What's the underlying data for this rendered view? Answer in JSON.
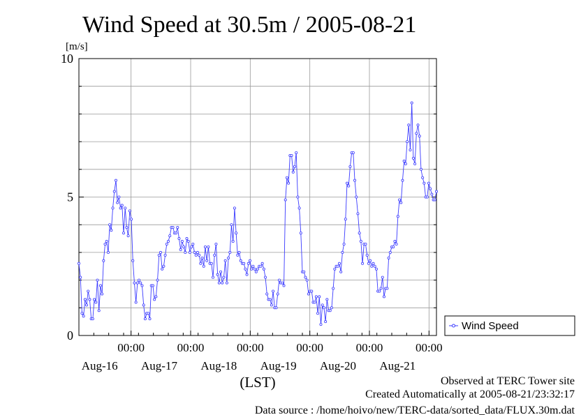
{
  "chart_data": {
    "type": "line",
    "title": "Wind Speed at 30.5m / 2005-08-21",
    "ylabel": "[m/s]",
    "xlabel": "(LST)",
    "ylim": [
      0,
      10
    ],
    "yticks": [
      "0",
      "5",
      "10"
    ],
    "xlim": [
      0,
      144
    ],
    "xticks": [
      {
        "x": 21,
        "time": "00:00",
        "date": "Aug-16"
      },
      {
        "x": 45,
        "time": "00:00",
        "date": "Aug-17"
      },
      {
        "x": 69,
        "time": "00:00",
        "date": "Aug-18"
      },
      {
        "x": 93,
        "time": "00:00",
        "date": "Aug-19"
      },
      {
        "x": 117,
        "time": "00:00",
        "date": "Aug-20"
      },
      {
        "x": 141,
        "time": "00:00",
        "date": "Aug-21"
      }
    ],
    "grid": true,
    "legend": "right",
    "series": [
      {
        "name": "Wind Speed",
        "color": "#3a3aff",
        "values": [
          2.6,
          2.1,
          0.8,
          0.7,
          1.3,
          1.1,
          1.6,
          1.3,
          0.6,
          0.6,
          1.3,
          1.2,
          2.0,
          0.9,
          1.8,
          1.5,
          2.7,
          3.3,
          3.4,
          3.0,
          4.0,
          3.8,
          4.6,
          5.2,
          5.6,
          4.8,
          5.0,
          4.6,
          4.7,
          3.7,
          4.6,
          3.9,
          3.6,
          4.5,
          4.2,
          2.7,
          1.9,
          1.2,
          1.9,
          2.0,
          1.9,
          1.8,
          1.1,
          0.6,
          0.8,
          0.8,
          0.6,
          1.8,
          1.8,
          1.3,
          1.4,
          2.0,
          2.9,
          3.0,
          2.4,
          2.5,
          2.9,
          3.3,
          3.4,
          3.6,
          3.9,
          3.9,
          3.7,
          3.7,
          3.9,
          3.5,
          3.1,
          3.4,
          3.2,
          3.0,
          3.5,
          3.4,
          3.0,
          3.2,
          3.3,
          3.0,
          2.9,
          3.0,
          2.9,
          2.6,
          2.8,
          2.5,
          3.2,
          2.7,
          3.2,
          2.6,
          2.6,
          2.1,
          2.9,
          3.3,
          2.2,
          1.9,
          2.3,
          1.9,
          2.1,
          2.7,
          1.9,
          2.8,
          3.0,
          4.0,
          3.4,
          4.6,
          3.7,
          2.9,
          3.0,
          2.7,
          2.6,
          2.6,
          2.4,
          2.2,
          2.6,
          2.7,
          2.4,
          2.5,
          2.4,
          2.3,
          2.4,
          2.5,
          2.5,
          2.6,
          2.4,
          2.1,
          1.5,
          1.3,
          1.3,
          1.1,
          1.6,
          1.0,
          1.0,
          1.5,
          2.0,
          1.9,
          1.9,
          1.8,
          4.9,
          5.7,
          5.5,
          6.5,
          6.5,
          5.9,
          6.1,
          6.6,
          5.0,
          4.6,
          3.7,
          2.3,
          2.3,
          2.1,
          2.0,
          1.5,
          1.6,
          1.6,
          1.2,
          1.2,
          1.4,
          0.8,
          1.4,
          0.4,
          1.1,
          1.0,
          0.5,
          1.3,
          0.9,
          0.9,
          1.0,
          1.7,
          2.4,
          2.5,
          2.5,
          2.6,
          2.3,
          3.0,
          3.3,
          4.2,
          5.5,
          5.4,
          6.1,
          6.6,
          6.6,
          5.6,
          5.0,
          4.4,
          3.7,
          3.4,
          2.6,
          3.3,
          3.3,
          2.9,
          2.6,
          2.7,
          2.5,
          2.6,
          2.5,
          2.4,
          1.6,
          1.6,
          1.7,
          2.1,
          1.4,
          1.7,
          1.7,
          2.8,
          3.0,
          3.2,
          3.2,
          3.4,
          3.3,
          4.3,
          4.9,
          4.8,
          5.6,
          6.3,
          6.2,
          7.0,
          7.6,
          6.7,
          8.4,
          6.4,
          6.2,
          7.3,
          7.6,
          7.2,
          6.0,
          5.7,
          5.5,
          5.0,
          5.0,
          5.5,
          5.3,
          5.1,
          4.9,
          4.9,
          5.2
        ]
      }
    ]
  },
  "footer": {
    "line1": "Observed at TERC Tower site",
    "line2": "Created Automatically at 2005-08-21/23:32:17",
    "line3": "Data source : /home/hoivo/new/TERC-data/sorted_data/FLUX.30m.dat"
  }
}
